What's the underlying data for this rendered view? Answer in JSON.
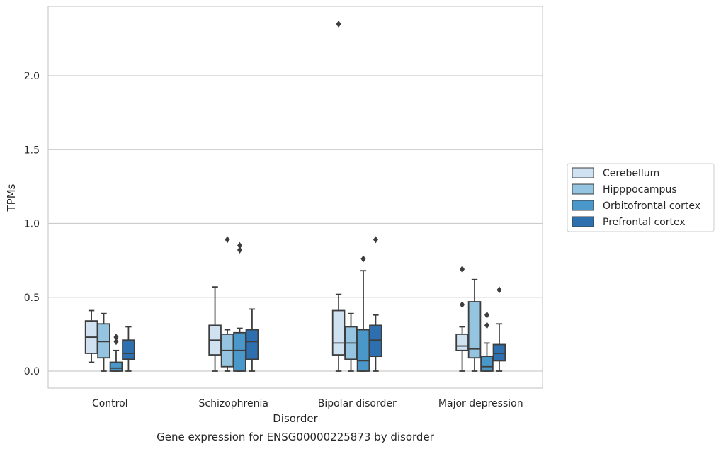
{
  "chart_data": {
    "type": "box",
    "title": "",
    "caption": "Gene expression for ENSG00000225873 by disorder",
    "xlabel": "Disorder",
    "ylabel": "TPMs",
    "ylim": [
      -0.11,
      2.48
    ],
    "yticks": [
      0.0,
      0.5,
      1.0,
      1.5,
      2.0
    ],
    "ytick_labels": [
      "0.0",
      "0.5",
      "1.0",
      "1.5",
      "2.0"
    ],
    "categories": [
      "Control",
      "Schizophrenia",
      "Bipolar disorder",
      "Major depression"
    ],
    "grid": "horizontal",
    "legend_position": "right",
    "series": [
      {
        "name": "Cerebellum",
        "color": "#d0e1f2",
        "boxes": [
          {
            "whislo": 0.06,
            "q1": 0.12,
            "med": 0.23,
            "q3": 0.34,
            "whishi": 0.41,
            "fliers": []
          },
          {
            "whislo": 0.0,
            "q1": 0.11,
            "med": 0.21,
            "q3": 0.31,
            "whishi": 0.57,
            "fliers": []
          },
          {
            "whislo": 0.0,
            "q1": 0.11,
            "med": 0.19,
            "q3": 0.41,
            "whishi": 0.52,
            "fliers": [
              2.35
            ]
          },
          {
            "whislo": 0.0,
            "q1": 0.14,
            "med": 0.17,
            "q3": 0.25,
            "whishi": 0.3,
            "fliers": [
              0.69,
              0.45
            ]
          }
        ]
      },
      {
        "name": "Hipppocampus",
        "color": "#94c4df",
        "boxes": [
          {
            "whislo": 0.0,
            "q1": 0.09,
            "med": 0.2,
            "q3": 0.32,
            "whishi": 0.39,
            "fliers": []
          },
          {
            "whislo": 0.0,
            "q1": 0.03,
            "med": 0.14,
            "q3": 0.25,
            "whishi": 0.28,
            "fliers": [
              0.89
            ]
          },
          {
            "whislo": 0.0,
            "q1": 0.08,
            "med": 0.19,
            "q3": 0.3,
            "whishi": 0.39,
            "fliers": []
          },
          {
            "whislo": 0.0,
            "q1": 0.09,
            "med": 0.15,
            "q3": 0.47,
            "whishi": 0.62,
            "fliers": []
          }
        ]
      },
      {
        "name": "Orbitofrontal cortex",
        "color": "#4a98c9",
        "boxes": [
          {
            "whislo": 0.0,
            "q1": 0.0,
            "med": 0.02,
            "q3": 0.06,
            "whishi": 0.14,
            "fliers": [
              0.23,
              0.2
            ]
          },
          {
            "whislo": 0.0,
            "q1": 0.0,
            "med": 0.14,
            "q3": 0.26,
            "whishi": 0.29,
            "fliers": [
              0.85,
              0.82
            ]
          },
          {
            "whislo": 0.0,
            "q1": 0.0,
            "med": 0.07,
            "q3": 0.28,
            "whishi": 0.68,
            "fliers": [
              0.76
            ]
          },
          {
            "whislo": 0.0,
            "q1": 0.0,
            "med": 0.03,
            "q3": 0.1,
            "whishi": 0.19,
            "fliers": [
              0.38,
              0.31
            ]
          }
        ]
      },
      {
        "name": "Prefrontal cortex",
        "color": "#2e6fb0",
        "boxes": [
          {
            "whislo": 0.0,
            "q1": 0.08,
            "med": 0.12,
            "q3": 0.21,
            "whishi": 0.3,
            "fliers": []
          },
          {
            "whislo": 0.0,
            "q1": 0.08,
            "med": 0.2,
            "q3": 0.28,
            "whishi": 0.42,
            "fliers": []
          },
          {
            "whislo": 0.0,
            "q1": 0.1,
            "med": 0.21,
            "q3": 0.31,
            "whishi": 0.38,
            "fliers": [
              0.89
            ]
          },
          {
            "whislo": 0.0,
            "q1": 0.07,
            "med": 0.12,
            "q3": 0.18,
            "whishi": 0.32,
            "fliers": [
              0.55
            ]
          }
        ]
      }
    ]
  }
}
